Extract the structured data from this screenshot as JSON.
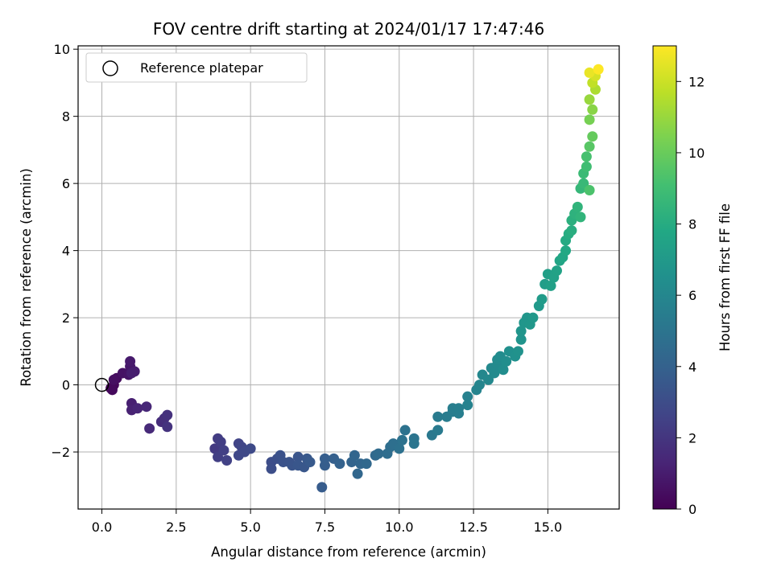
{
  "chart_data": {
    "type": "scatter",
    "title": "FOV centre drift starting at 2024/01/17 17:47:46",
    "xlabel": "Angular distance from reference (arcmin)",
    "ylabel": "Rotation from reference (arcmin)",
    "xlim": [
      -0.8,
      17.4
    ],
    "ylim": [
      -3.7,
      10.1
    ],
    "xticks": [
      0.0,
      2.5,
      5.0,
      7.5,
      10.0,
      12.5,
      15.0
    ],
    "xtick_labels": [
      "0.0",
      "2.5",
      "5.0",
      "7.5",
      "10.0",
      "12.5",
      "15.0"
    ],
    "yticks": [
      -2,
      0,
      2,
      4,
      6,
      8,
      10
    ],
    "ytick_labels": [
      "−2",
      "0",
      "2",
      "4",
      "6",
      "8",
      "10"
    ],
    "grid": true,
    "legend": {
      "location": "top-left",
      "entries": [
        {
          "label": "Reference platepar",
          "marker": "open-circle",
          "color": "#000000"
        }
      ]
    },
    "reference_point": {
      "x": 0.0,
      "y": 0.0
    },
    "colorbar": {
      "label": "Hours from first FF file",
      "colormap": "viridis",
      "range": [
        0,
        13
      ],
      "ticks": [
        0,
        2,
        4,
        6,
        8,
        10,
        12
      ],
      "tick_labels": [
        "0",
        "2",
        "4",
        "6",
        "8",
        "10",
        "12"
      ]
    },
    "points": [
      {
        "x": 0.3,
        "y": -0.1,
        "t": 0.1
      },
      {
        "x": 0.4,
        "y": 0.0,
        "t": 0.2
      },
      {
        "x": 0.35,
        "y": -0.15,
        "t": 0.3
      },
      {
        "x": 0.5,
        "y": 0.2,
        "t": 0.4
      },
      {
        "x": 0.4,
        "y": 0.15,
        "t": 0.5
      },
      {
        "x": 0.7,
        "y": 0.35,
        "t": 0.6
      },
      {
        "x": 0.9,
        "y": 0.3,
        "t": 0.7
      },
      {
        "x": 0.95,
        "y": 0.55,
        "t": 0.8
      },
      {
        "x": 0.95,
        "y": 0.7,
        "t": 0.9
      },
      {
        "x": 1.1,
        "y": 0.4,
        "t": 1.0
      },
      {
        "x": 1.0,
        "y": 0.35,
        "t": 1.05
      },
      {
        "x": 1.0,
        "y": -0.55,
        "t": 1.1
      },
      {
        "x": 1.0,
        "y": -0.75,
        "t": 1.2
      },
      {
        "x": 1.2,
        "y": -0.7,
        "t": 1.3
      },
      {
        "x": 1.5,
        "y": -0.65,
        "t": 1.4
      },
      {
        "x": 1.6,
        "y": -1.3,
        "t": 1.5
      },
      {
        "x": 2.0,
        "y": -1.1,
        "t": 1.6
      },
      {
        "x": 2.1,
        "y": -1.0,
        "t": 1.7
      },
      {
        "x": 2.2,
        "y": -0.9,
        "t": 1.8
      },
      {
        "x": 2.2,
        "y": -1.25,
        "t": 1.9
      },
      {
        "x": 3.8,
        "y": -1.9,
        "t": 2.2
      },
      {
        "x": 3.9,
        "y": -1.6,
        "t": 2.3
      },
      {
        "x": 4.0,
        "y": -1.7,
        "t": 2.35
      },
      {
        "x": 3.9,
        "y": -2.15,
        "t": 2.4
      },
      {
        "x": 4.1,
        "y": -1.95,
        "t": 2.45
      },
      {
        "x": 4.2,
        "y": -2.25,
        "t": 2.5
      },
      {
        "x": 4.6,
        "y": -1.75,
        "t": 2.6
      },
      {
        "x": 4.7,
        "y": -1.85,
        "t": 2.7
      },
      {
        "x": 4.6,
        "y": -2.1,
        "t": 2.8
      },
      {
        "x": 4.8,
        "y": -2.0,
        "t": 2.85
      },
      {
        "x": 5.0,
        "y": -1.9,
        "t": 2.9
      },
      {
        "x": 5.7,
        "y": -2.3,
        "t": 3.0
      },
      {
        "x": 5.7,
        "y": -2.5,
        "t": 3.05
      },
      {
        "x": 5.9,
        "y": -2.2,
        "t": 3.1
      },
      {
        "x": 6.0,
        "y": -2.1,
        "t": 3.2
      },
      {
        "x": 6.1,
        "y": -2.3,
        "t": 3.25
      },
      {
        "x": 6.3,
        "y": -2.3,
        "t": 3.3
      },
      {
        "x": 6.4,
        "y": -2.4,
        "t": 3.35
      },
      {
        "x": 6.6,
        "y": -2.15,
        "t": 3.4
      },
      {
        "x": 6.6,
        "y": -2.4,
        "t": 3.45
      },
      {
        "x": 6.8,
        "y": -2.45,
        "t": 3.5
      },
      {
        "x": 6.9,
        "y": -2.2,
        "t": 3.55
      },
      {
        "x": 7.0,
        "y": -2.3,
        "t": 3.6
      },
      {
        "x": 7.4,
        "y": -3.05,
        "t": 3.7
      },
      {
        "x": 7.5,
        "y": -2.4,
        "t": 3.75
      },
      {
        "x": 7.5,
        "y": -2.2,
        "t": 3.8
      },
      {
        "x": 7.8,
        "y": -2.2,
        "t": 3.9
      },
      {
        "x": 8.0,
        "y": -2.35,
        "t": 4.0
      },
      {
        "x": 8.4,
        "y": -2.3,
        "t": 4.1
      },
      {
        "x": 8.5,
        "y": -2.1,
        "t": 4.2
      },
      {
        "x": 8.7,
        "y": -2.35,
        "t": 4.25
      },
      {
        "x": 8.6,
        "y": -2.65,
        "t": 4.3
      },
      {
        "x": 8.9,
        "y": -2.35,
        "t": 4.35
      },
      {
        "x": 9.2,
        "y": -2.1,
        "t": 4.4
      },
      {
        "x": 9.3,
        "y": -2.05,
        "t": 4.5
      },
      {
        "x": 9.6,
        "y": -2.05,
        "t": 4.6
      },
      {
        "x": 9.7,
        "y": -1.85,
        "t": 4.65
      },
      {
        "x": 9.8,
        "y": -1.75,
        "t": 4.7
      },
      {
        "x": 10.0,
        "y": -1.9,
        "t": 4.8
      },
      {
        "x": 10.1,
        "y": -1.65,
        "t": 4.85
      },
      {
        "x": 10.2,
        "y": -1.35,
        "t": 4.9
      },
      {
        "x": 10.5,
        "y": -1.6,
        "t": 5.0
      },
      {
        "x": 10.5,
        "y": -1.75,
        "t": 5.05
      },
      {
        "x": 11.1,
        "y": -1.5,
        "t": 5.2
      },
      {
        "x": 11.3,
        "y": -1.35,
        "t": 5.3
      },
      {
        "x": 11.3,
        "y": -0.95,
        "t": 5.35
      },
      {
        "x": 11.6,
        "y": -0.95,
        "t": 5.4
      },
      {
        "x": 11.8,
        "y": -0.8,
        "t": 5.45
      },
      {
        "x": 11.8,
        "y": -0.7,
        "t": 5.5
      },
      {
        "x": 12.0,
        "y": -0.85,
        "t": 5.55
      },
      {
        "x": 12.0,
        "y": -0.7,
        "t": 5.6
      },
      {
        "x": 12.3,
        "y": -0.35,
        "t": 5.7
      },
      {
        "x": 12.3,
        "y": -0.6,
        "t": 5.75
      },
      {
        "x": 12.6,
        "y": -0.15,
        "t": 5.85
      },
      {
        "x": 12.7,
        "y": 0.0,
        "t": 5.9
      },
      {
        "x": 12.8,
        "y": 0.3,
        "t": 6.0
      },
      {
        "x": 13.0,
        "y": 0.15,
        "t": 6.05
      },
      {
        "x": 13.1,
        "y": 0.5,
        "t": 6.1
      },
      {
        "x": 13.2,
        "y": 0.35,
        "t": 6.15
      },
      {
        "x": 13.3,
        "y": 0.6,
        "t": 6.2
      },
      {
        "x": 13.3,
        "y": 0.75,
        "t": 6.25
      },
      {
        "x": 13.4,
        "y": 0.85,
        "t": 6.3
      },
      {
        "x": 13.5,
        "y": 0.45,
        "t": 6.35
      },
      {
        "x": 13.6,
        "y": 0.7,
        "t": 6.4
      },
      {
        "x": 13.7,
        "y": 1.0,
        "t": 6.5
      },
      {
        "x": 13.9,
        "y": 0.85,
        "t": 6.55
      },
      {
        "x": 14.0,
        "y": 1.0,
        "t": 6.6
      },
      {
        "x": 14.1,
        "y": 1.35,
        "t": 6.7
      },
      {
        "x": 14.1,
        "y": 1.6,
        "t": 6.75
      },
      {
        "x": 14.2,
        "y": 1.85,
        "t": 6.8
      },
      {
        "x": 14.3,
        "y": 2.0,
        "t": 6.85
      },
      {
        "x": 14.4,
        "y": 1.8,
        "t": 6.9
      },
      {
        "x": 14.5,
        "y": 2.0,
        "t": 6.95
      },
      {
        "x": 14.7,
        "y": 2.35,
        "t": 7.0
      },
      {
        "x": 14.8,
        "y": 2.55,
        "t": 7.1
      },
      {
        "x": 14.9,
        "y": 3.0,
        "t": 7.2
      },
      {
        "x": 15.0,
        "y": 3.3,
        "t": 7.3
      },
      {
        "x": 15.1,
        "y": 2.95,
        "t": 7.35
      },
      {
        "x": 15.2,
        "y": 3.2,
        "t": 7.4
      },
      {
        "x": 15.3,
        "y": 3.4,
        "t": 7.5
      },
      {
        "x": 15.4,
        "y": 3.7,
        "t": 7.6
      },
      {
        "x": 15.5,
        "y": 3.8,
        "t": 7.7
      },
      {
        "x": 15.6,
        "y": 4.0,
        "t": 7.8
      },
      {
        "x": 15.6,
        "y": 4.3,
        "t": 7.9
      },
      {
        "x": 15.7,
        "y": 4.5,
        "t": 8.0
      },
      {
        "x": 15.8,
        "y": 4.6,
        "t": 8.1
      },
      {
        "x": 15.8,
        "y": 4.9,
        "t": 8.2
      },
      {
        "x": 15.9,
        "y": 5.1,
        "t": 8.3
      },
      {
        "x": 16.0,
        "y": 5.3,
        "t": 8.4
      },
      {
        "x": 16.1,
        "y": 5.0,
        "t": 8.45
      },
      {
        "x": 16.1,
        "y": 5.85,
        "t": 8.6
      },
      {
        "x": 16.2,
        "y": 6.0,
        "t": 8.7
      },
      {
        "x": 16.2,
        "y": 6.3,
        "t": 8.8
      },
      {
        "x": 16.3,
        "y": 6.5,
        "t": 9.0
      },
      {
        "x": 16.3,
        "y": 6.8,
        "t": 9.2
      },
      {
        "x": 16.4,
        "y": 5.8,
        "t": 9.3
      },
      {
        "x": 16.4,
        "y": 7.1,
        "t": 9.6
      },
      {
        "x": 16.5,
        "y": 7.4,
        "t": 9.9
      },
      {
        "x": 16.4,
        "y": 7.9,
        "t": 10.3
      },
      {
        "x": 16.5,
        "y": 8.2,
        "t": 10.7
      },
      {
        "x": 16.4,
        "y": 8.5,
        "t": 11.0
      },
      {
        "x": 16.6,
        "y": 8.8,
        "t": 11.4
      },
      {
        "x": 16.5,
        "y": 9.0,
        "t": 11.8
      },
      {
        "x": 16.6,
        "y": 9.2,
        "t": 12.2
      },
      {
        "x": 16.4,
        "y": 9.3,
        "t": 12.6
      },
      {
        "x": 16.7,
        "y": 9.4,
        "t": 13.0
      }
    ]
  }
}
